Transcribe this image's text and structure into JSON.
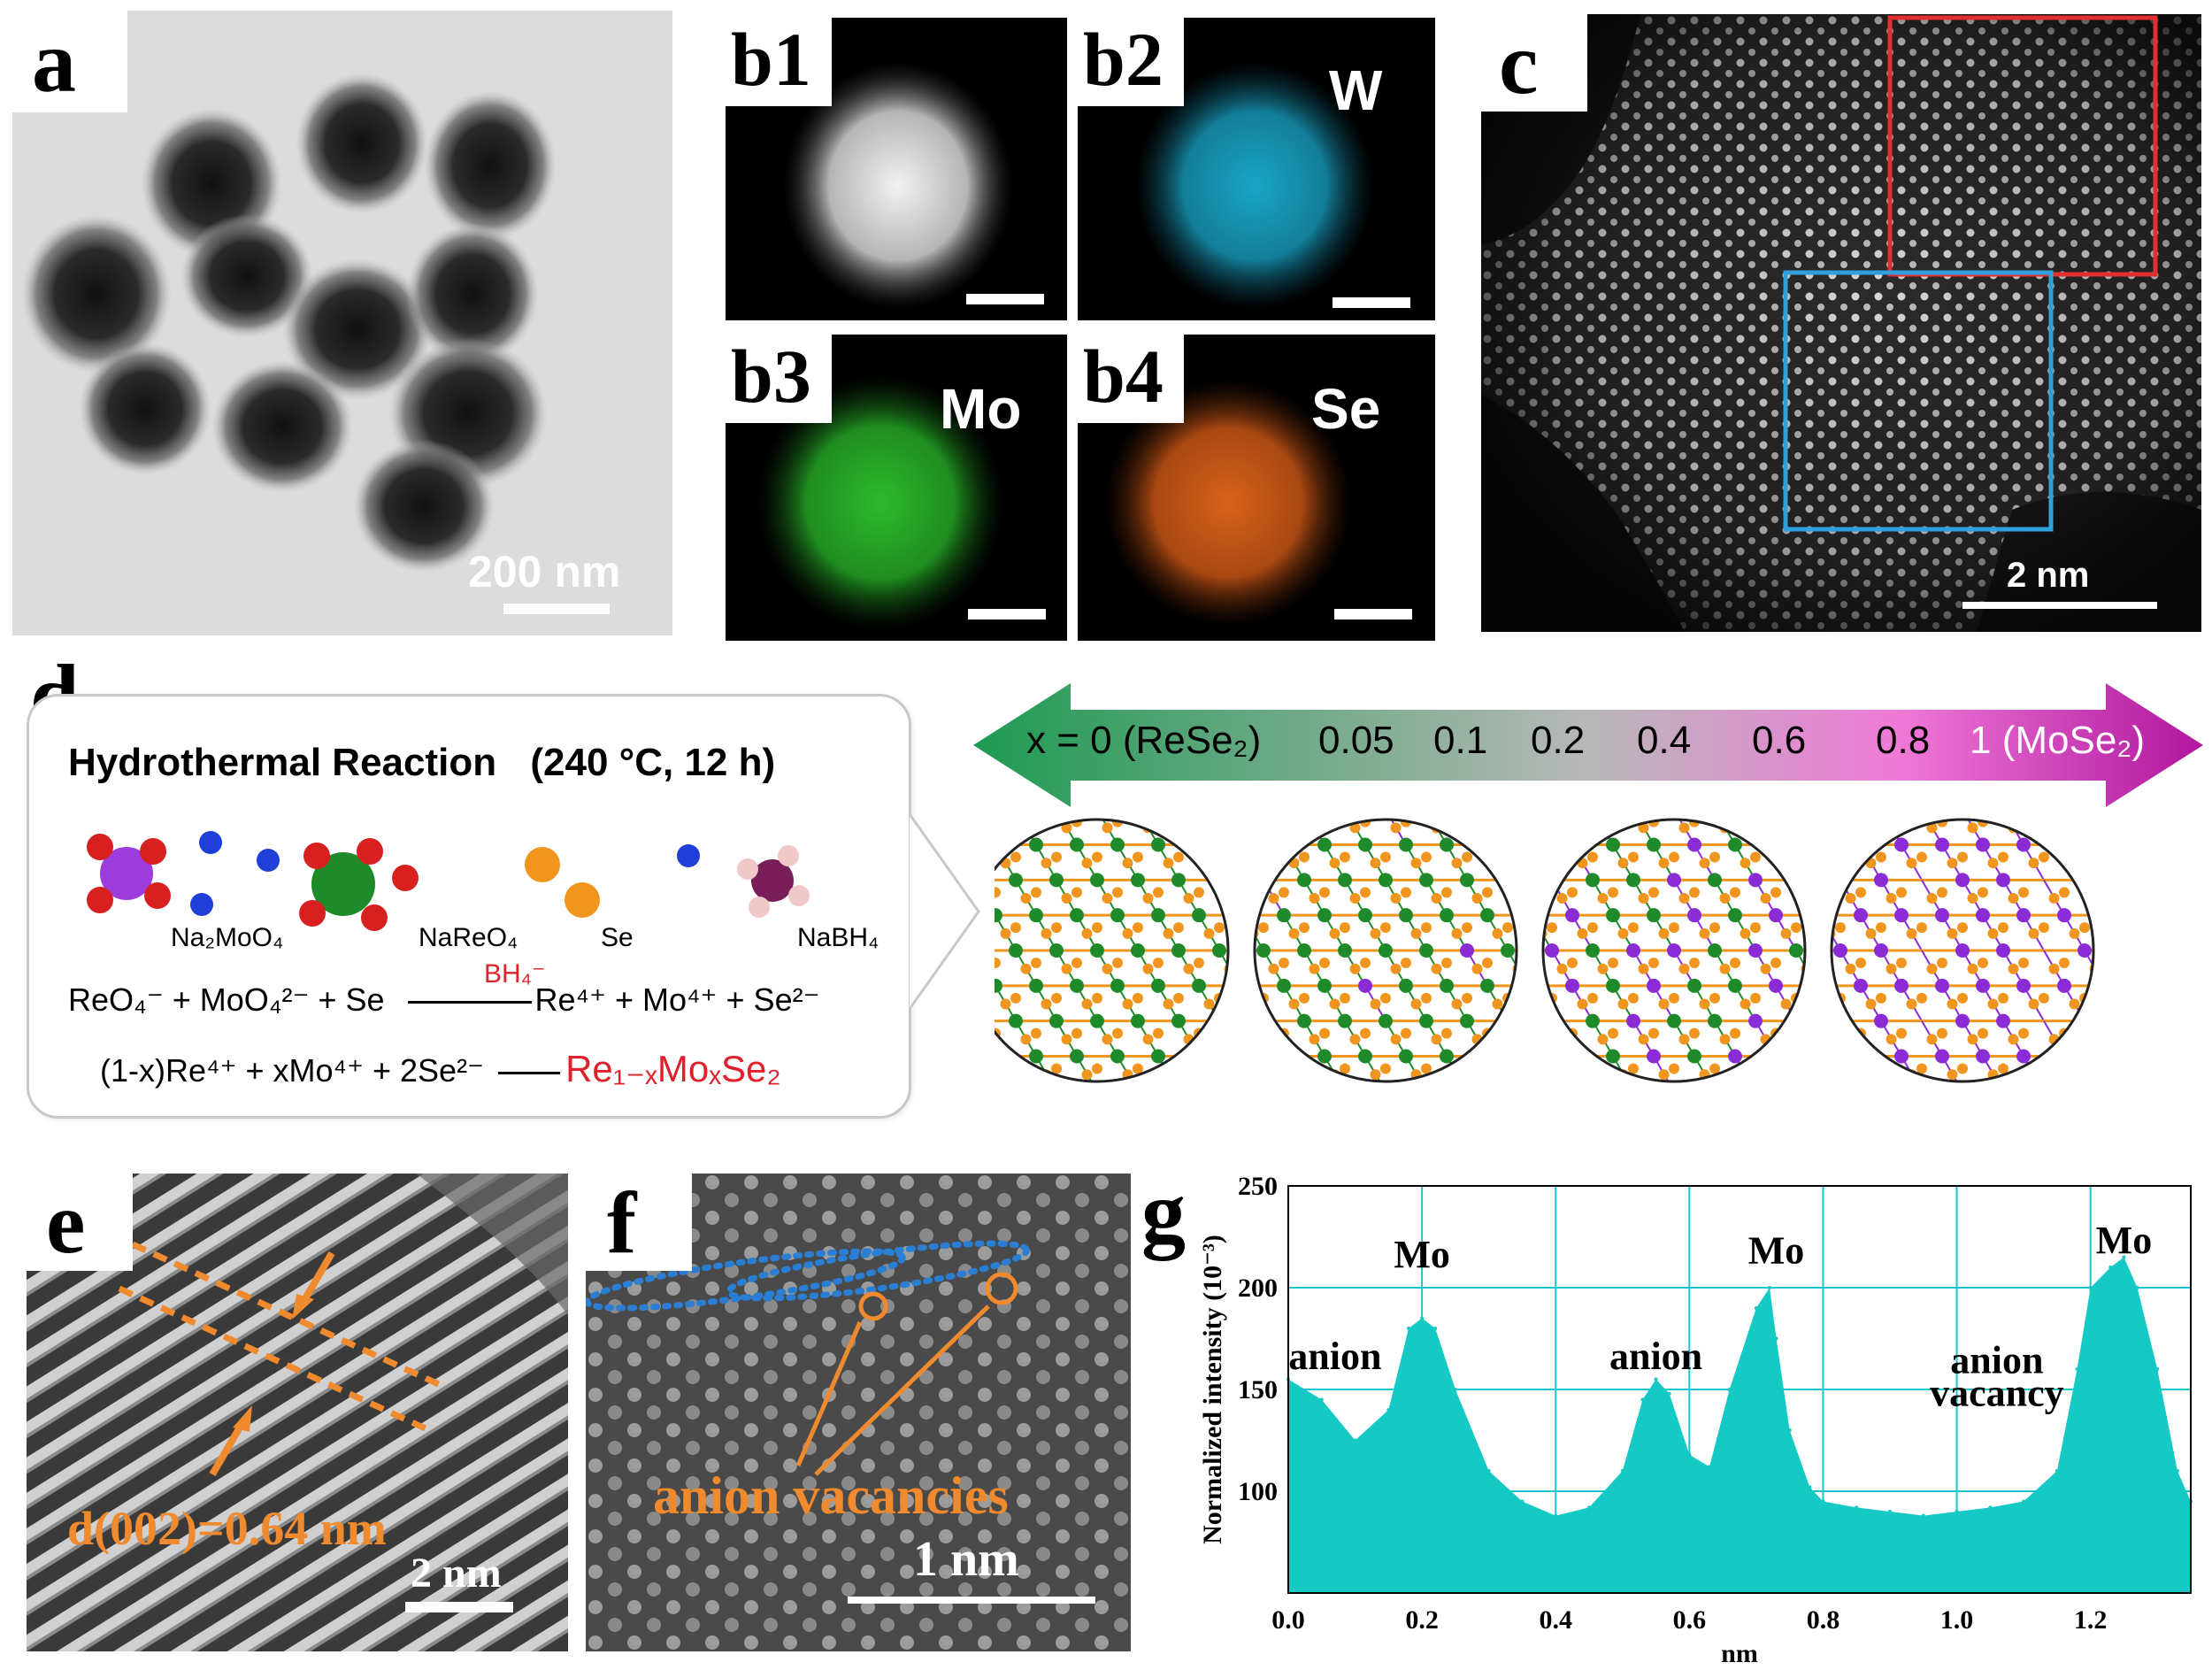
{
  "panels": {
    "a": {
      "label": "a",
      "scale": "200 nm"
    },
    "b1": {
      "label": "b1"
    },
    "b2": {
      "label": "b2",
      "element": "W",
      "color": "#19a6c8"
    },
    "b3": {
      "label": "b3",
      "element": "Mo",
      "color": "#2dbb2d"
    },
    "b4": {
      "label": "b4",
      "element": "Se",
      "color": "#d9621a"
    },
    "c": {
      "label": "c",
      "scale": "2 nm"
    },
    "d": {
      "label": "d",
      "box_title": "Hydrothermal Reaction",
      "box_conditions": "(240 °C, 12 h)",
      "reagents": [
        "Na₂MoO₄",
        "NaReO₄",
        "Se",
        "NaBH₄"
      ],
      "eq1_left": "ReO₄⁻ + MoO₄²⁻ + Se",
      "eq1_catalyst": "BH₄⁻",
      "eq1_right": "Re⁴⁺ + Mo⁴⁺ + Se²⁻",
      "eq2_left": "(1-x)Re⁴⁺ + xMo⁴⁺ + 2Se²⁻",
      "eq2_product": "Re₁₋ₓMoₓSe₂",
      "gradient_labels": [
        "x = 0 (ReSe₂)",
        "0.05",
        "0.1",
        "0.2",
        "0.4",
        "0.6",
        "0.8",
        "1 (MoSe₂)"
      ],
      "colors": {
        "re": "#1f8a2a",
        "mo": "#8a2bd6",
        "se": "#f0951e",
        "gradient_left": "#1e9a52",
        "gradient_mid": "#b8b8b8",
        "gradient_right": "#b0169e"
      }
    },
    "e": {
      "label": "e",
      "annotation": "d(002)=0.64 nm",
      "scale": "2 nm",
      "accent": "#f08a2e"
    },
    "f": {
      "label": "f",
      "annotation": "anion vacancies",
      "scale": "1 nm",
      "accent": "#f08a2e",
      "dots": "#2a7fd4"
    },
    "g": {
      "label": "g"
    }
  },
  "chart_data": {
    "type": "area",
    "title": "",
    "xlabel": "nm",
    "ylabel": "Normalized intensity (10⁻³)",
    "xlim": [
      0.0,
      1.35
    ],
    "ylim": [
      50,
      250
    ],
    "xticks": [
      "0.0",
      "0.2",
      "0.4",
      "0.6",
      "0.8",
      "1.0",
      "1.2"
    ],
    "yticks": [
      "100",
      "150",
      "200",
      "250"
    ],
    "grid": true,
    "fill_color": "#15c9c4",
    "annotations": [
      {
        "text": "anion",
        "x": 0.07,
        "y": 160
      },
      {
        "text": "Mo",
        "x": 0.2,
        "y": 210
      },
      {
        "text": "anion",
        "x": 0.55,
        "y": 160
      },
      {
        "text": "Mo",
        "x": 0.73,
        "y": 212
      },
      {
        "text": "anion",
        "x": 1.06,
        "y": 158
      },
      {
        "text": "vacancy",
        "x": 1.06,
        "y": 142
      },
      {
        "text": "Mo",
        "x": 1.25,
        "y": 217
      }
    ],
    "x": [
      0.0,
      0.05,
      0.1,
      0.15,
      0.18,
      0.2,
      0.22,
      0.25,
      0.3,
      0.35,
      0.4,
      0.45,
      0.5,
      0.53,
      0.55,
      0.57,
      0.6,
      0.63,
      0.66,
      0.7,
      0.72,
      0.73,
      0.75,
      0.78,
      0.8,
      0.85,
      0.9,
      0.95,
      1.0,
      1.05,
      1.1,
      1.15,
      1.18,
      1.2,
      1.23,
      1.25,
      1.27,
      1.3,
      1.33,
      1.35
    ],
    "values": [
      155,
      145,
      125,
      140,
      180,
      185,
      180,
      150,
      110,
      95,
      88,
      92,
      110,
      145,
      155,
      148,
      118,
      112,
      150,
      190,
      200,
      175,
      130,
      102,
      95,
      92,
      90,
      88,
      90,
      92,
      95,
      110,
      160,
      200,
      210,
      215,
      200,
      160,
      110,
      95
    ]
  }
}
